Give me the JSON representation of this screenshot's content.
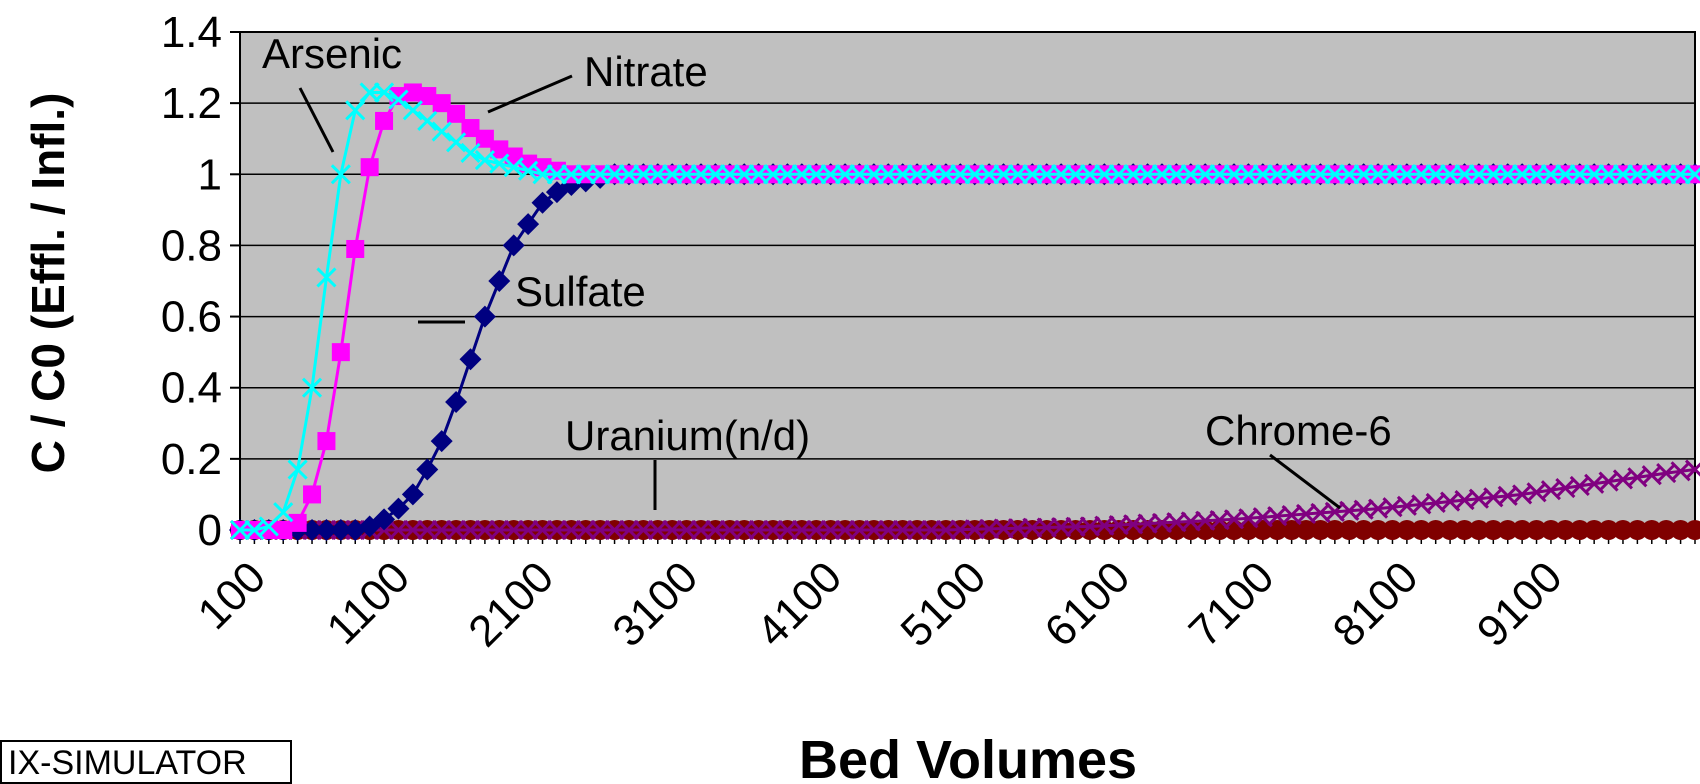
{
  "chart_data": {
    "type": "line",
    "xlabel": "Bed Volumes",
    "ylabel": "C / C0 (Effl. / Infl.)",
    "ylim": [
      0,
      1.4
    ],
    "yticks": [
      "0",
      "0.2",
      "0.4",
      "0.6",
      "0.8",
      "1",
      "1.2",
      "1.4"
    ],
    "xtick_labels": [
      "100",
      "1100",
      "2100",
      "3100",
      "4100",
      "5100",
      "6100",
      "7100",
      "8100",
      "9100"
    ],
    "xlim": [
      100,
      10200
    ],
    "grid": "horizontal",
    "plot_background": "#c0c0c0",
    "series": [
      {
        "name": "Arsenic",
        "color": "#ff00ff",
        "marker": "square",
        "x": [
          100,
          200,
          300,
          400,
          500,
          600,
          700,
          800,
          900,
          1000,
          1100,
          1200,
          1300,
          1400,
          1500,
          1600,
          1700,
          1800,
          1900,
          2000,
          2100,
          2200,
          2300,
          2400,
          2500,
          2600,
          2700,
          2800,
          10200
        ],
        "y": [
          0,
          0,
          0,
          0,
          0.02,
          0.1,
          0.25,
          0.5,
          0.79,
          1.02,
          1.15,
          1.22,
          1.23,
          1.22,
          1.2,
          1.17,
          1.13,
          1.1,
          1.07,
          1.05,
          1.03,
          1.02,
          1.01,
          1.0,
          1.0,
          1.0,
          1.0,
          1.0,
          1.0
        ]
      },
      {
        "name": "Nitrate",
        "color": "#00ffff",
        "marker": "x",
        "x": [
          100,
          200,
          300,
          400,
          500,
          600,
          700,
          800,
          900,
          1000,
          1100,
          1200,
          1300,
          1400,
          1500,
          1600,
          1700,
          1800,
          1900,
          2000,
          2100,
          2200,
          2300,
          2400,
          2500,
          2600,
          2700,
          10200
        ],
        "y": [
          0,
          0,
          0.01,
          0.05,
          0.17,
          0.4,
          0.71,
          1.0,
          1.18,
          1.23,
          1.23,
          1.21,
          1.18,
          1.15,
          1.12,
          1.09,
          1.06,
          1.04,
          1.03,
          1.02,
          1.01,
          1.0,
          1.0,
          1.0,
          1.0,
          1.0,
          1.0,
          1.0
        ]
      },
      {
        "name": "Sulfate",
        "color": "#000080",
        "marker": "diamond",
        "x": [
          100,
          200,
          300,
          400,
          500,
          600,
          700,
          800,
          900,
          1000,
          1100,
          1200,
          1300,
          1400,
          1500,
          1600,
          1700,
          1800,
          1900,
          2000,
          2100,
          2200,
          2300,
          2400,
          2500,
          2600,
          2700,
          2800,
          2900,
          3000,
          10200
        ],
        "y": [
          0,
          0,
          0,
          0,
          0,
          0,
          0,
          0,
          0,
          0.01,
          0.03,
          0.06,
          0.1,
          0.17,
          0.25,
          0.36,
          0.48,
          0.6,
          0.7,
          0.8,
          0.86,
          0.92,
          0.95,
          0.97,
          0.98,
          0.99,
          1.0,
          1.0,
          1.0,
          1.0,
          1.0
        ]
      },
      {
        "name": "Uranium(n/d)",
        "color": "#800000",
        "marker": "circle",
        "x": [
          100,
          10200
        ],
        "y": [
          0,
          0
        ]
      },
      {
        "name": "Chrome-6",
        "color": "#800080",
        "marker": "x",
        "x": [
          100,
          5000,
          5500,
          6000,
          6500,
          7000,
          7500,
          8000,
          8500,
          9000,
          9500,
          10000,
          10200
        ],
        "y": [
          0,
          0,
          0.005,
          0.01,
          0.02,
          0.03,
          0.045,
          0.06,
          0.08,
          0.1,
          0.13,
          0.16,
          0.17
        ]
      }
    ],
    "annotations": [
      {
        "text": "Arsenic"
      },
      {
        "text": "Nitrate"
      },
      {
        "text": "Sulfate"
      },
      {
        "text": "Uranium(n/d)"
      },
      {
        "text": "Chrome-6"
      }
    ]
  },
  "badge": "IX-SIMULATOR"
}
